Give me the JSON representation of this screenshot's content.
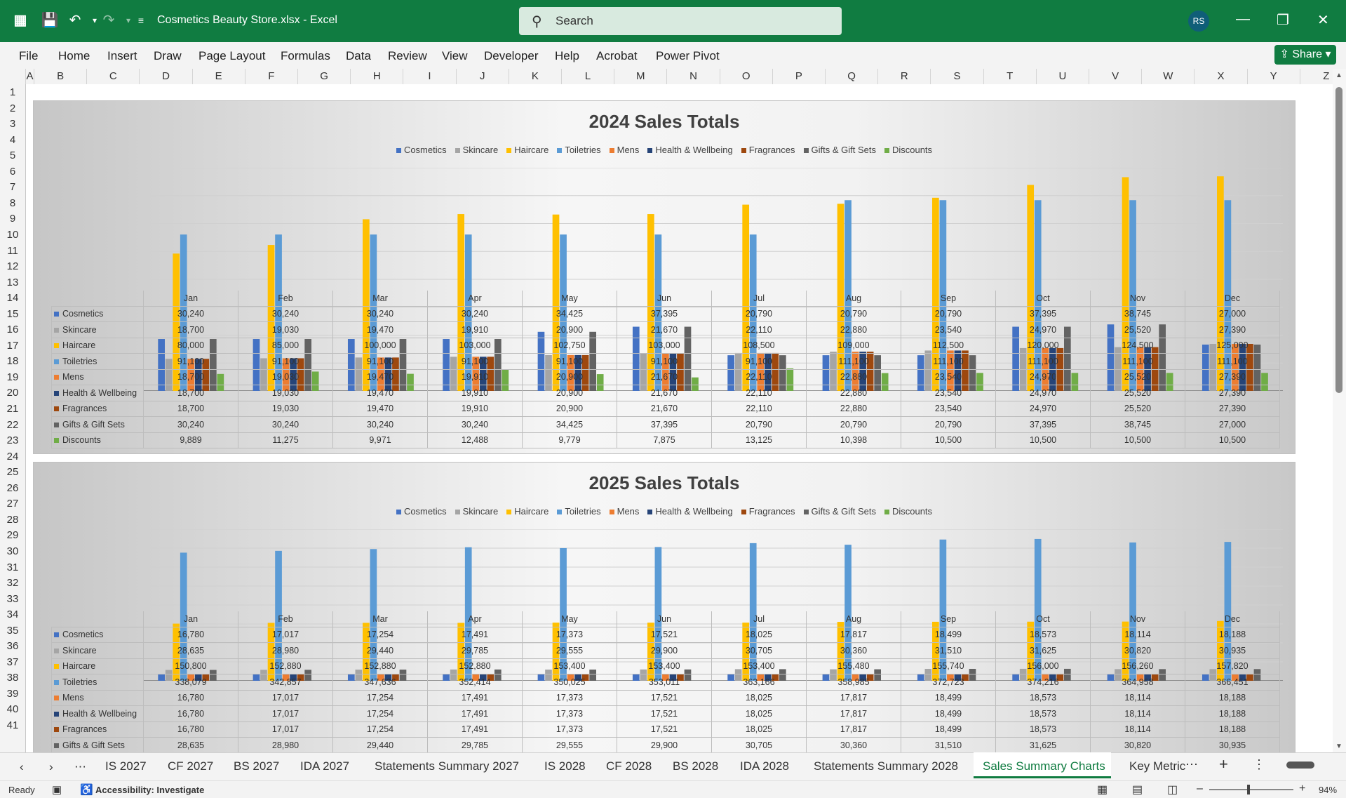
{
  "window": {
    "title": "Cosmetics Beauty Store.xlsx  -  Excel",
    "search_placeholder": "Search",
    "user_initials": "RS",
    "share_label": "Share"
  },
  "menu": [
    "File",
    "Home",
    "Insert",
    "Draw",
    "Page Layout",
    "Formulas",
    "Data",
    "Review",
    "View",
    "Developer",
    "Help",
    "Acrobat",
    "Power Pivot"
  ],
  "columns": [
    "A",
    "B",
    "C",
    "D",
    "E",
    "F",
    "G",
    "H",
    "I",
    "J",
    "K",
    "L",
    "M",
    "N",
    "O",
    "P",
    "Q",
    "R",
    "S",
    "T",
    "U",
    "V",
    "W",
    "X",
    "Y",
    "Z"
  ],
  "rows": [
    "1",
    "2",
    "3",
    "4",
    "5",
    "6",
    "7",
    "8",
    "9",
    "10",
    "11",
    "12",
    "13",
    "14",
    "15",
    "16",
    "17",
    "18",
    "19",
    "20",
    "21",
    "22",
    "23",
    "24",
    "25",
    "26",
    "27",
    "28",
    "29",
    "30",
    "31",
    "32",
    "33",
    "34",
    "35",
    "36",
    "37",
    "38",
    "39",
    "40",
    "41"
  ],
  "series_colors": {
    "Cosmetics": "#4472c4",
    "Skincare": "#a5a5a5",
    "Haircare": "#ffc000",
    "Toiletries": "#5b9bd5",
    "Mens": "#ed7d31",
    "Health & Wellbeing": "#264478",
    "Fragrances": "#9e480e",
    "Gifts & Gift Sets": "#636363",
    "Discounts": "#70ad47"
  },
  "chart_data": [
    {
      "type": "bar",
      "title": "2024 Sales Totals",
      "legend_position": "top",
      "ylim": [
        0,
        130000
      ],
      "grid": true,
      "categories": [
        "Jan",
        "Feb",
        "Mar",
        "Apr",
        "May",
        "Jun",
        "Jul",
        "Aug",
        "Sep",
        "Oct",
        "Nov",
        "Dec"
      ],
      "series": [
        {
          "name": "Cosmetics",
          "values": [
            "30,240",
            "30,240",
            "30,240",
            "30,240",
            "34,425",
            "37,395",
            "20,790",
            "20,790",
            "20,790",
            "37,395",
            "38,745",
            "27,000"
          ]
        },
        {
          "name": "Skincare",
          "values": [
            "18,700",
            "19,030",
            "19,470",
            "19,910",
            "20,900",
            "21,670",
            "22,110",
            "22,880",
            "23,540",
            "24,970",
            "25,520",
            "27,390"
          ]
        },
        {
          "name": "Haircare",
          "values": [
            "80,000",
            "85,000",
            "100,000",
            "103,000",
            "102,750",
            "103,000",
            "108,500",
            "109,000",
            "112,500",
            "120,000",
            "124,500",
            "125,000"
          ]
        },
        {
          "name": "Toiletries",
          "values": [
            "91,100",
            "91,100",
            "91,100",
            "91,100",
            "91,100",
            "91,100",
            "91,100",
            "111,100",
            "111,100",
            "111,100",
            "111,100",
            "111,100"
          ]
        },
        {
          "name": "Mens",
          "values": [
            "18,700",
            "19,030",
            "19,470",
            "19,910",
            "20,900",
            "21,670",
            "22,110",
            "22,880",
            "23,540",
            "24,970",
            "25,520",
            "27,390"
          ]
        },
        {
          "name": "Health & Wellbeing",
          "values": [
            "18,700",
            "19,030",
            "19,470",
            "19,910",
            "20,900",
            "21,670",
            "22,110",
            "22,880",
            "23,540",
            "24,970",
            "25,520",
            "27,390"
          ]
        },
        {
          "name": "Fragrances",
          "values": [
            "18,700",
            "19,030",
            "19,470",
            "19,910",
            "20,900",
            "21,670",
            "22,110",
            "22,880",
            "23,540",
            "24,970",
            "25,520",
            "27,390"
          ]
        },
        {
          "name": "Gifts & Gift Sets",
          "values": [
            "30,240",
            "30,240",
            "30,240",
            "30,240",
            "34,425",
            "37,395",
            "20,790",
            "20,790",
            "20,790",
            "37,395",
            "38,745",
            "27,000"
          ]
        },
        {
          "name": "Discounts",
          "values": [
            "9,889",
            "11,275",
            "9,971",
            "12,488",
            "9,779",
            "7,875",
            "13,125",
            "10,398",
            "10,500",
            "10,500",
            "10,500",
            "10,500"
          ]
        }
      ]
    },
    {
      "type": "bar",
      "title": "2025 Sales Totals",
      "legend_position": "top",
      "ylim": [
        0,
        400000
      ],
      "grid": true,
      "categories": [
        "Jan",
        "Feb",
        "Mar",
        "Apr",
        "May",
        "Jun",
        "Jul",
        "Aug",
        "Sep",
        "Oct",
        "Nov",
        "Dec"
      ],
      "series": [
        {
          "name": "Cosmetics",
          "values": [
            "16,780",
            "17,017",
            "17,254",
            "17,491",
            "17,373",
            "17,521",
            "18,025",
            "17,817",
            "18,499",
            "18,573",
            "18,114",
            "18,188"
          ]
        },
        {
          "name": "Skincare",
          "values": [
            "28,635",
            "28,980",
            "29,440",
            "29,785",
            "29,555",
            "29,900",
            "30,705",
            "30,360",
            "31,510",
            "31,625",
            "30,820",
            "30,935"
          ]
        },
        {
          "name": "Haircare",
          "values": [
            "150,800",
            "152,880",
            "152,880",
            "152,880",
            "153,400",
            "153,400",
            "153,400",
            "155,480",
            "155,740",
            "156,000",
            "156,260",
            "157,820"
          ]
        },
        {
          "name": "Toiletries",
          "values": [
            "338,079",
            "342,857",
            "347,636",
            "352,414",
            "350,025",
            "353,011",
            "363,166",
            "358,985",
            "372,723",
            "374,216",
            "364,958",
            "366,451"
          ]
        },
        {
          "name": "Mens",
          "values": [
            "16,780",
            "17,017",
            "17,254",
            "17,491",
            "17,373",
            "17,521",
            "18,025",
            "17,817",
            "18,499",
            "18,573",
            "18,114",
            "18,188"
          ]
        },
        {
          "name": "Health & Wellbeing",
          "values": [
            "16,780",
            "17,017",
            "17,254",
            "17,491",
            "17,373",
            "17,521",
            "18,025",
            "17,817",
            "18,499",
            "18,573",
            "18,114",
            "18,188"
          ]
        },
        {
          "name": "Fragrances",
          "values": [
            "16,780",
            "17,017",
            "17,254",
            "17,491",
            "17,373",
            "17,521",
            "18,025",
            "17,817",
            "18,499",
            "18,573",
            "18,114",
            "18,188"
          ]
        },
        {
          "name": "Gifts & Gift Sets",
          "values": [
            "28,635",
            "28,980",
            "29,440",
            "29,785",
            "29,555",
            "29,900",
            "30,705",
            "30,360",
            "31,510",
            "31,625",
            "30,820",
            "30,935"
          ]
        },
        {
          "name": "Discounts",
          "values": [
            "",
            "",
            "",
            "",
            "",
            "",
            "",
            "",
            "",
            "",
            "",
            ""
          ]
        }
      ]
    }
  ],
  "sheet_tabs": [
    "IS 2027",
    "CF 2027",
    "BS 2027",
    "IDA 2027",
    "Statements Summary 2027",
    "IS 2028",
    "CF 2028",
    "BS 2028",
    "IDA 2028",
    "Statements Summary 2028",
    "Sales Summary Charts",
    "Key Metric"
  ],
  "active_tab": "Sales Summary Charts",
  "status": {
    "ready": "Ready",
    "accessibility": "Accessibility: Investigate",
    "zoom": "94%"
  }
}
